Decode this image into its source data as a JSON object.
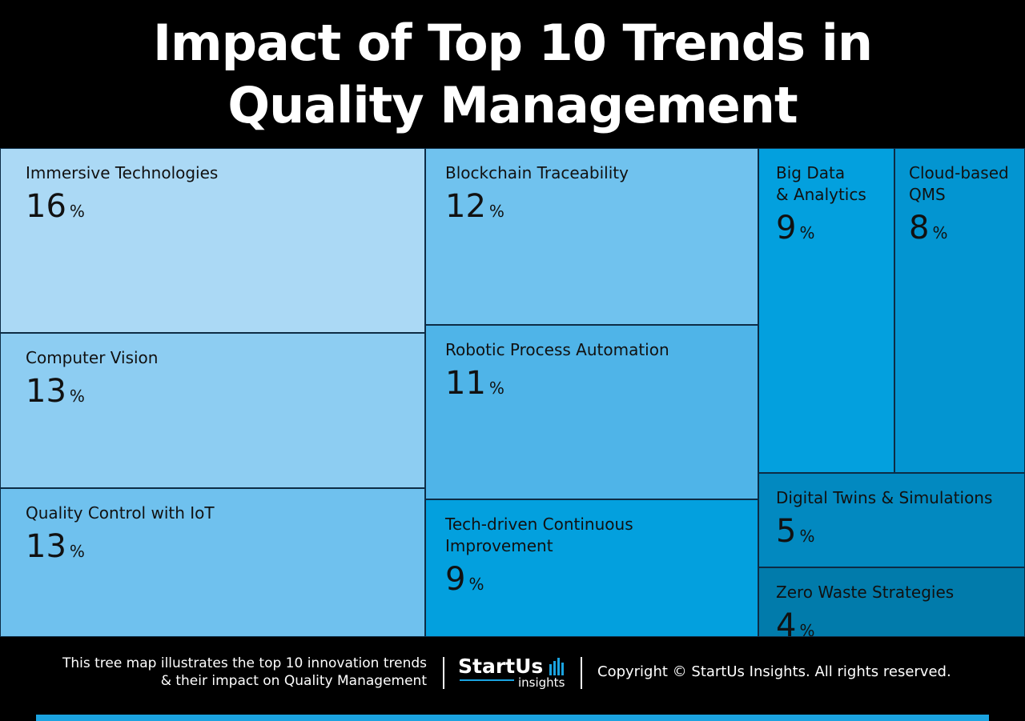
{
  "title_lines": [
    "Impact of Top 10 Trends in",
    "Quality Management"
  ],
  "chart_data": {
    "type": "treemap",
    "unit": "%",
    "items": [
      {
        "label": "Immersive Technologies",
        "value": 16,
        "color": "#abd9f5"
      },
      {
        "label": "Computer Vision",
        "value": 13,
        "color": "#8dcdf2"
      },
      {
        "label": "Quality Control with IoT",
        "value": 13,
        "color": "#6fc1ee"
      },
      {
        "label": "Blockchain Traceability",
        "value": 12,
        "color": "#70c2ee"
      },
      {
        "label": "Robotic Process Automation",
        "value": 11,
        "color": "#4fb4e8"
      },
      {
        "label": "Tech-driven Continuous\nImprovement",
        "value": 9,
        "color": "#03a0de"
      },
      {
        "label": "Big Data\n& Analytics",
        "value": 9,
        "color": "#03a0de"
      },
      {
        "label": "Cloud-based\nQMS",
        "value": 8,
        "color": "#0395d1"
      },
      {
        "label": "Digital Twins & Simulations",
        "value": 5,
        "color": "#0289c0"
      },
      {
        "label": "Zero Waste Strategies",
        "value": 4,
        "color": "#017bab"
      }
    ]
  },
  "footer": {
    "description_lines": [
      "This tree map illustrates the top 10 innovation trends",
      "& their impact on Quality Management"
    ],
    "logo_main": "StartUs",
    "logo_sub": "insights",
    "copyright": "Copyright © StartUs Insights. All rights reserved."
  },
  "colors": {
    "background": "#000000",
    "accent": "#1ba3e0",
    "border": "#0d2c45"
  }
}
